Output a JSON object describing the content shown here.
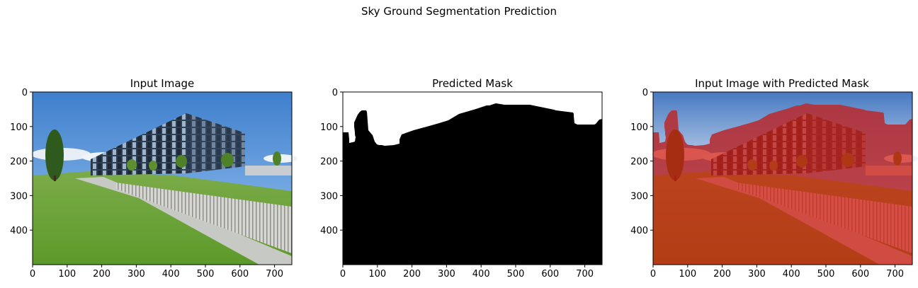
{
  "figure": {
    "suptitle": "Sky Ground Segmentation Prediction"
  },
  "panels": [
    {
      "title": "Input Image",
      "xticks": [
        "0",
        "100",
        "200",
        "300",
        "400",
        "500",
        "600",
        "700"
      ],
      "yticks": [
        "0",
        "100",
        "200",
        "300",
        "400"
      ]
    },
    {
      "title": "Predicted Mask",
      "xticks": [
        "0",
        "100",
        "200",
        "300",
        "400",
        "500",
        "600",
        "700"
      ],
      "yticks": [
        "0",
        "100",
        "200",
        "300",
        "400"
      ]
    },
    {
      "title": "Input Image with Predicted Mask",
      "xticks": [
        "0",
        "100",
        "200",
        "300",
        "400",
        "500",
        "600",
        "700"
      ],
      "yticks": [
        "0",
        "100",
        "200",
        "300",
        "400"
      ]
    }
  ],
  "image_extent": {
    "x": [
      0,
      750
    ],
    "y": [
      0,
      500
    ]
  },
  "colors": {
    "sky": "#4f8fd6",
    "grass": "#6aa33a",
    "mask_ground": "#000000",
    "mask_sky": "#ffffff",
    "overlay_red": "#c21a10"
  }
}
